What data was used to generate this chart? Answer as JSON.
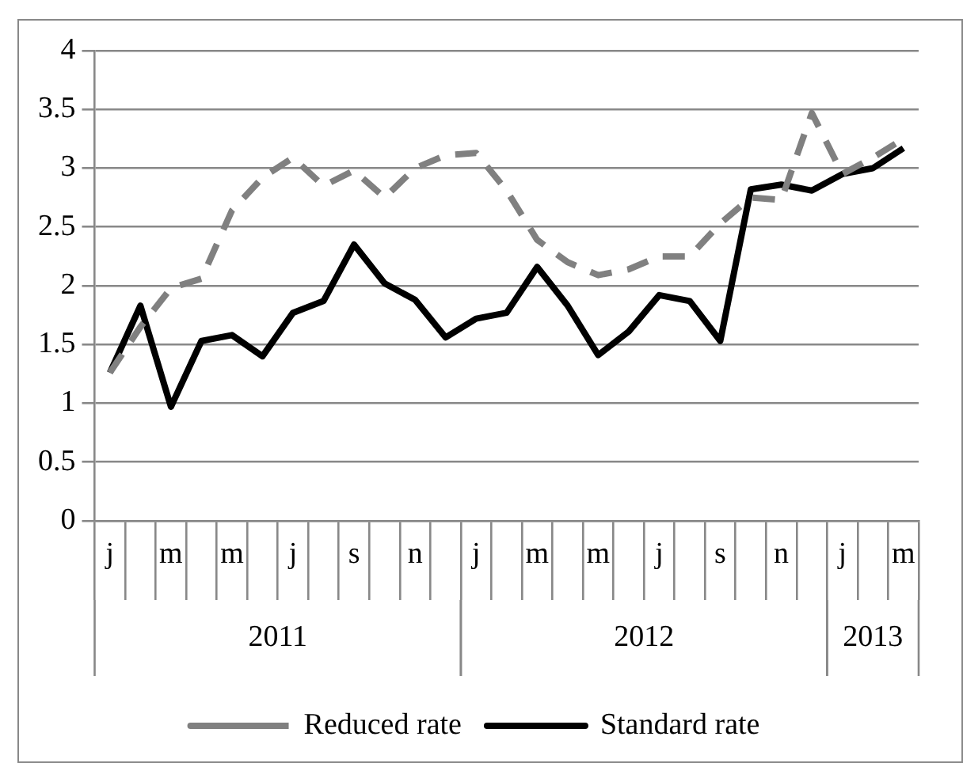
{
  "chart_data": {
    "type": "line",
    "categories": [
      "j",
      null,
      "m",
      null,
      "m",
      null,
      "j",
      null,
      "s",
      null,
      "n",
      null,
      "j",
      null,
      "m",
      null,
      "m",
      null,
      "j",
      null,
      "s",
      null,
      "n",
      null,
      "j",
      null,
      "m"
    ],
    "series": [
      {
        "name": "Reduced rate",
        "color": "#808080",
        "line_style": "dashed",
        "values": [
          1.26,
          1.65,
          1.98,
          2.06,
          2.64,
          2.92,
          3.09,
          2.85,
          2.98,
          2.75,
          3.0,
          3.11,
          3.13,
          2.81,
          2.39,
          2.2,
          2.09,
          2.14,
          2.25,
          2.25,
          2.53,
          2.75,
          2.73,
          3.47,
          2.95,
          3.09,
          3.25
        ]
      },
      {
        "name": "Standard rate",
        "color": "#000000",
        "line_style": "solid",
        "values": [
          1.26,
          1.83,
          0.97,
          1.53,
          1.58,
          1.4,
          1.77,
          1.87,
          2.35,
          2.02,
          1.88,
          1.56,
          1.72,
          1.77,
          2.16,
          1.83,
          1.41,
          1.61,
          1.92,
          1.87,
          1.53,
          2.82,
          2.86,
          2.81,
          2.95,
          3.0,
          3.17
        ]
      }
    ],
    "ylim": [
      0,
      4
    ],
    "yticks": [
      0,
      0.5,
      1,
      1.5,
      2,
      2.5,
      3,
      3.5,
      4
    ],
    "grid": "y",
    "legend": "bottom",
    "marker": "none",
    "annotations": [
      "2011",
      "2012",
      "2013"
    ]
  }
}
